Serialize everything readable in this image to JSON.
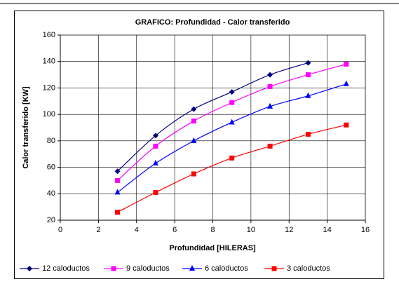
{
  "chart_data": {
    "type": "line",
    "title": "GRAFICO: Profundidad - Calor transferido",
    "xlabel": "Profundidad [HILERAS]",
    "ylabel": "Calor transferido [KW]",
    "xlim": [
      0,
      16
    ],
    "xticks": [
      0,
      2,
      4,
      6,
      8,
      10,
      12,
      14,
      16
    ],
    "ylim": [
      20,
      160
    ],
    "yticks": [
      20,
      40,
      60,
      80,
      100,
      120,
      140,
      160
    ],
    "grid": true,
    "legend": "bottom",
    "series": [
      {
        "name": "12 caloductos",
        "color": "#000080",
        "marker": "diamond",
        "x": [
          3,
          5,
          7,
          9,
          11,
          13
        ],
        "values": [
          57,
          84,
          104,
          117,
          130,
          139
        ]
      },
      {
        "name": "9 caloductos",
        "color": "#ff00ff",
        "marker": "square",
        "x": [
          3,
          5,
          7,
          9,
          11,
          13,
          15
        ],
        "values": [
          50,
          76,
          95,
          109,
          121,
          130,
          138
        ]
      },
      {
        "name": "6 caloductos",
        "color": "#0000ff",
        "marker": "triangle",
        "x": [
          3,
          5,
          7,
          9,
          11,
          13,
          15
        ],
        "values": [
          41,
          63,
          80,
          94,
          106,
          114,
          123
        ]
      },
      {
        "name": "3 caloductos",
        "color": "#ff0000",
        "marker": "square",
        "x": [
          3,
          5,
          7,
          9,
          11,
          13,
          15
        ],
        "values": [
          26,
          41,
          55,
          67,
          76,
          85,
          92
        ]
      }
    ]
  }
}
